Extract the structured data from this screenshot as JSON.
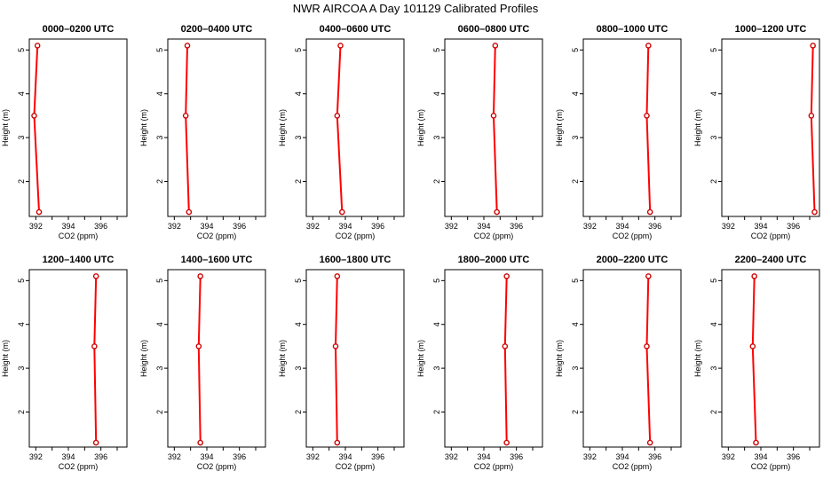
{
  "chart_data": {
    "type": "line",
    "title": "NWR AIRCOA A  Day 101129  Calibrated Profiles",
    "xlabel": "CO2 (ppm)",
    "ylabel": "Height (m)",
    "xlim": [
      391.6,
      397.6
    ],
    "ylim": [
      1.2,
      5.25
    ],
    "x_ticks": [
      392,
      394,
      396
    ],
    "x_tick_labels": [
      "392",
      "394",
      "396"
    ],
    "y_ticks": [
      2,
      3,
      4,
      5
    ],
    "y_tick_labels": [
      "2",
      "3",
      "4",
      "5"
    ],
    "heights": [
      5.1,
      3.5,
      1.3
    ],
    "line_color": "#ff0000",
    "point_color": "#cc0000",
    "panels": [
      {
        "title": "0000–0200 UTC",
        "x": [
          392.1,
          391.9,
          392.2
        ]
      },
      {
        "title": "0200–0400 UTC",
        "x": [
          392.8,
          392.7,
          392.9
        ]
      },
      {
        "title": "0400–0600 UTC",
        "x": [
          393.7,
          393.5,
          393.8
        ]
      },
      {
        "title": "0600–0800 UTC",
        "x": [
          394.7,
          394.6,
          394.8
        ]
      },
      {
        "title": "0800–1000 UTC",
        "x": [
          395.6,
          395.5,
          395.7
        ]
      },
      {
        "title": "1000–1200 UTC",
        "x": [
          397.2,
          397.1,
          397.3
        ]
      },
      {
        "title": "1200–1400 UTC",
        "x": [
          395.7,
          395.6,
          395.7
        ]
      },
      {
        "title": "1400–1600 UTC",
        "x": [
          393.6,
          393.5,
          393.6
        ]
      },
      {
        "title": "1600–1800 UTC",
        "x": [
          393.5,
          393.4,
          393.5
        ]
      },
      {
        "title": "1800–2000 UTC",
        "x": [
          395.4,
          395.3,
          395.4
        ]
      },
      {
        "title": "2000–2200 UTC",
        "x": [
          395.6,
          395.5,
          395.7
        ]
      },
      {
        "title": "2200–2400 UTC",
        "x": [
          393.6,
          393.5,
          393.7
        ]
      }
    ]
  }
}
